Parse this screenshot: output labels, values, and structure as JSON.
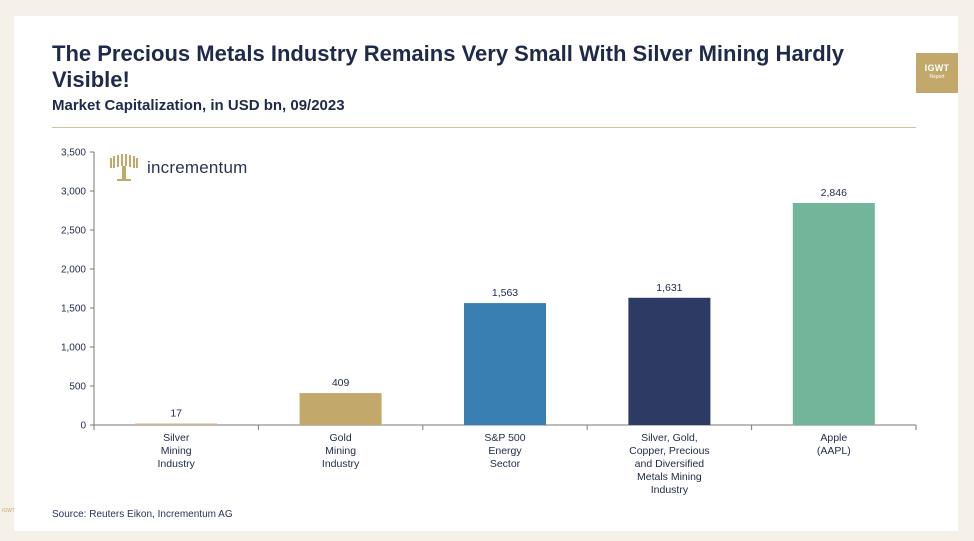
{
  "brand": {
    "badge_line1": "IGWT",
    "badge_line2": "Report",
    "logo_text": "incrementum",
    "gold": "#c3a86b",
    "navy": "#1f2a4a"
  },
  "footer": {
    "source": "Source: Reuters Eikon, Incrementum AG",
    "corner_mark": "IGWT"
  },
  "chart_data": {
    "type": "bar",
    "title": "The Precious Metals Industry Remains Very Small With Silver Mining Hardly Visible!",
    "subtitle": "Market Capitalization, in USD bn, 09/2023",
    "xlabel": "",
    "ylabel": "",
    "ylim": [
      0,
      3500
    ],
    "yticks": [
      0,
      500,
      1000,
      1500,
      2000,
      2500,
      3000,
      3500
    ],
    "ytick_labels": [
      "0",
      "500",
      "1,000",
      "1,500",
      "2,000",
      "2,500",
      "3,000",
      "3,500"
    ],
    "grid": false,
    "legend": "none",
    "categories": [
      [
        "Silver",
        "Mining",
        "Industry"
      ],
      [
        "Gold",
        "Mining",
        "Industry"
      ],
      [
        "S&P 500",
        "Energy",
        "Sector"
      ],
      [
        "Silver, Gold,",
        "Copper, Precious",
        "and Diversified",
        "Metals Mining",
        "Industry"
      ],
      [
        "Apple",
        "(AAPL)"
      ]
    ],
    "values": [
      17,
      409,
      1563,
      1631,
      2846
    ],
    "value_labels": [
      "17",
      "409",
      "1,563",
      "1,631",
      "2,846"
    ],
    "colors": [
      "#cdb889",
      "#c3a86b",
      "#3a7fb1",
      "#2d3a63",
      "#72b59a"
    ]
  }
}
